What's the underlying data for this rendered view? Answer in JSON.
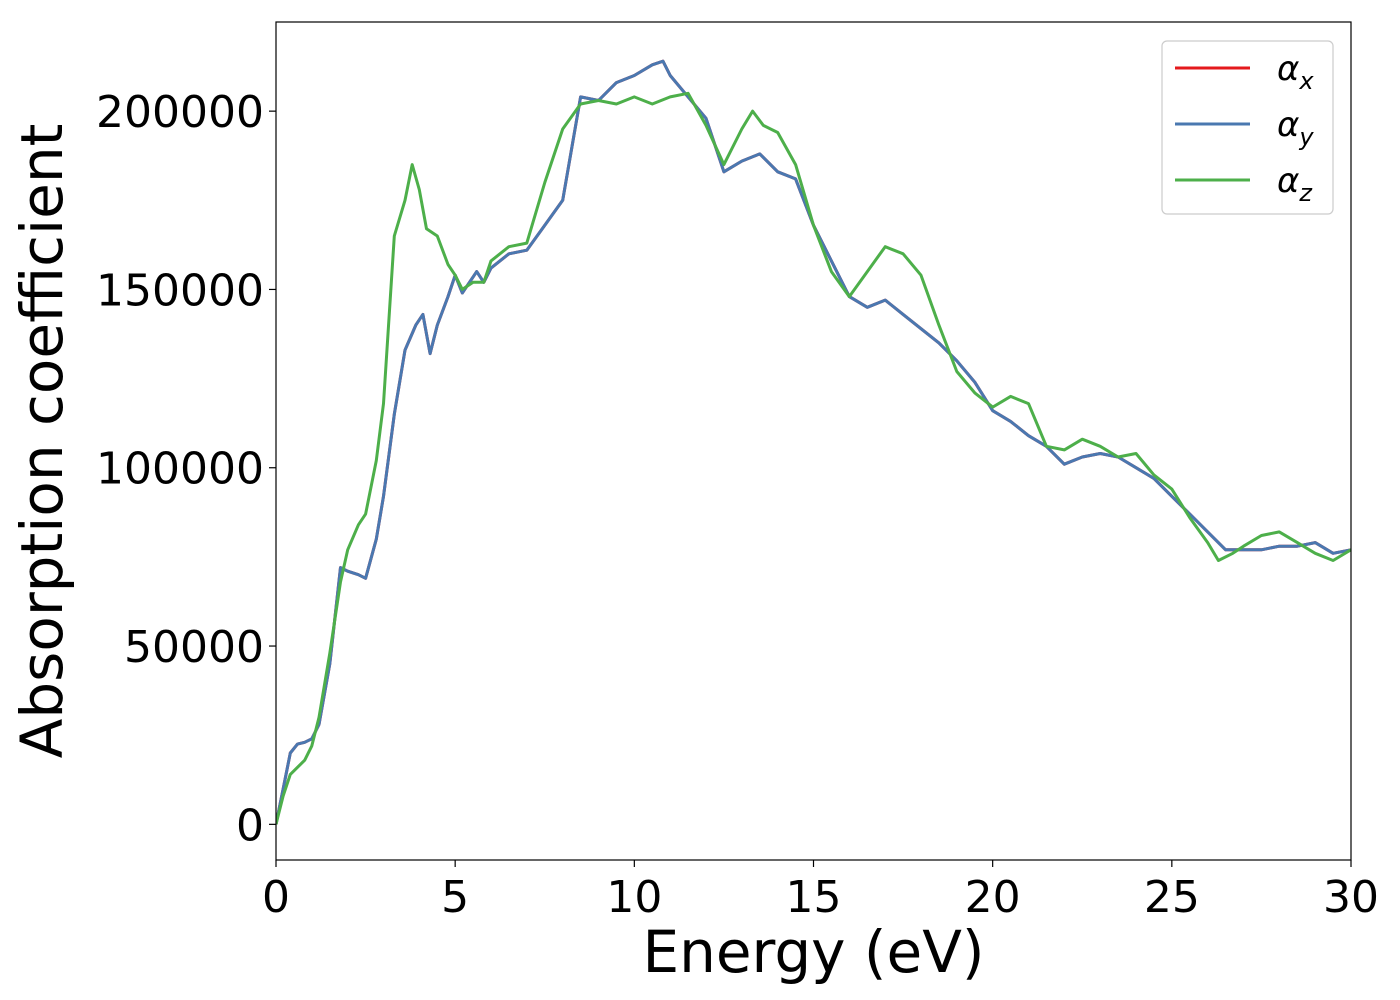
{
  "chart_data": {
    "type": "line",
    "xlabel": "Energy (eV)",
    "ylabel": "Absorption coefficient",
    "xlim": [
      0,
      30
    ],
    "ylim": [
      -10000,
      225000
    ],
    "xticks": [
      0,
      5,
      10,
      15,
      20,
      25,
      30
    ],
    "yticks": [
      0,
      50000,
      100000,
      150000,
      200000
    ],
    "grid": false,
    "legend_position": "top-right",
    "series": [
      {
        "name": "α",
        "subscript": "x",
        "color": "#e41a1c",
        "x": [
          0,
          0.2,
          0.4,
          0.6,
          0.8,
          1.0,
          1.2,
          1.5,
          1.8,
          2.0,
          2.3,
          2.5,
          2.8,
          3.0,
          3.3,
          3.6,
          3.9,
          4.1,
          4.3,
          4.5,
          4.8,
          5.0,
          5.2,
          5.4,
          5.6,
          5.8,
          6.0,
          6.5,
          7.0,
          7.5,
          8.0,
          8.5,
          9.0,
          9.5,
          10.0,
          10.5,
          10.8,
          11.0,
          11.5,
          12.0,
          12.5,
          13.0,
          13.5,
          14.0,
          14.5,
          15.0,
          15.5,
          16.0,
          16.5,
          17.0,
          17.5,
          18.0,
          18.5,
          19.0,
          19.5,
          20.0,
          20.5,
          21.0,
          21.5,
          22.0,
          22.5,
          23.0,
          23.5,
          24.0,
          24.5,
          25.0,
          25.5,
          26.0,
          26.5,
          27.0,
          27.5,
          28.0,
          28.5,
          29.0,
          29.5,
          30.0
        ],
        "y": [
          0,
          10000,
          20000,
          22500,
          23000,
          24000,
          28000,
          45000,
          72000,
          71000,
          70000,
          69000,
          80000,
          92000,
          115000,
          133000,
          140000,
          143000,
          132000,
          140000,
          148000,
          154000,
          149000,
          152000,
          155000,
          152000,
          156000,
          160000,
          161000,
          168000,
          175000,
          204000,
          203000,
          208000,
          210000,
          213000,
          214000,
          210000,
          204000,
          198000,
          183000,
          186000,
          188000,
          183000,
          181000,
          168000,
          158000,
          148000,
          145000,
          147000,
          143000,
          139000,
          135000,
          130000,
          124000,
          116000,
          113000,
          109000,
          106000,
          101000,
          103000,
          104000,
          103000,
          100000,
          97000,
          92000,
          87000,
          82000,
          77000,
          77000,
          77000,
          78000,
          78000,
          79000,
          76000,
          77000
        ]
      },
      {
        "name": "α",
        "subscript": "y",
        "color": "#4a78b0",
        "x": [
          0,
          0.2,
          0.4,
          0.6,
          0.8,
          1.0,
          1.2,
          1.5,
          1.8,
          2.0,
          2.3,
          2.5,
          2.8,
          3.0,
          3.3,
          3.6,
          3.9,
          4.1,
          4.3,
          4.5,
          4.8,
          5.0,
          5.2,
          5.4,
          5.6,
          5.8,
          6.0,
          6.5,
          7.0,
          7.5,
          8.0,
          8.5,
          9.0,
          9.5,
          10.0,
          10.5,
          10.8,
          11.0,
          11.5,
          12.0,
          12.5,
          13.0,
          13.5,
          14.0,
          14.5,
          15.0,
          15.5,
          16.0,
          16.5,
          17.0,
          17.5,
          18.0,
          18.5,
          19.0,
          19.5,
          20.0,
          20.5,
          21.0,
          21.5,
          22.0,
          22.5,
          23.0,
          23.5,
          24.0,
          24.5,
          25.0,
          25.5,
          26.0,
          26.5,
          27.0,
          27.5,
          28.0,
          28.5,
          29.0,
          29.5,
          30.0
        ],
        "y": [
          0,
          10000,
          20000,
          22500,
          23000,
          24000,
          28000,
          45000,
          72000,
          71000,
          70000,
          69000,
          80000,
          92000,
          115000,
          133000,
          140000,
          143000,
          132000,
          140000,
          148000,
          154000,
          149000,
          152000,
          155000,
          152000,
          156000,
          160000,
          161000,
          168000,
          175000,
          204000,
          203000,
          208000,
          210000,
          213000,
          214000,
          210000,
          204000,
          198000,
          183000,
          186000,
          188000,
          183000,
          181000,
          168000,
          158000,
          148000,
          145000,
          147000,
          143000,
          139000,
          135000,
          130000,
          124000,
          116000,
          113000,
          109000,
          106000,
          101000,
          103000,
          104000,
          103000,
          100000,
          97000,
          92000,
          87000,
          82000,
          77000,
          77000,
          77000,
          78000,
          78000,
          79000,
          76000,
          77000
        ]
      },
      {
        "name": "α",
        "subscript": "z",
        "color": "#4daf4a",
        "x": [
          0,
          0.2,
          0.4,
          0.6,
          0.8,
          1.0,
          1.2,
          1.5,
          1.8,
          2.0,
          2.3,
          2.5,
          2.8,
          3.0,
          3.3,
          3.6,
          3.8,
          4.0,
          4.2,
          4.5,
          4.8,
          5.0,
          5.2,
          5.5,
          5.8,
          6.0,
          6.5,
          7.0,
          7.5,
          8.0,
          8.5,
          9.0,
          9.5,
          10.0,
          10.5,
          11.0,
          11.5,
          12.0,
          12.5,
          13.0,
          13.3,
          13.6,
          14.0,
          14.5,
          15.0,
          15.5,
          16.0,
          16.5,
          17.0,
          17.5,
          18.0,
          18.5,
          19.0,
          19.5,
          20.0,
          20.5,
          21.0,
          21.5,
          22.0,
          22.5,
          23.0,
          23.5,
          24.0,
          24.5,
          25.0,
          25.5,
          26.0,
          26.3,
          26.7,
          27.0,
          27.5,
          28.0,
          28.5,
          29.0,
          29.5,
          30.0
        ],
        "y": [
          0,
          8000,
          14000,
          16000,
          18000,
          22000,
          30000,
          48000,
          68000,
          77000,
          84000,
          87000,
          102000,
          118000,
          165000,
          175000,
          185000,
          178000,
          167000,
          165000,
          157000,
          154000,
          150000,
          152000,
          152000,
          158000,
          162000,
          163000,
          180000,
          195000,
          202000,
          203000,
          202000,
          204000,
          202000,
          204000,
          205000,
          196000,
          185000,
          195000,
          200000,
          196000,
          194000,
          185000,
          168000,
          155000,
          148000,
          155000,
          162000,
          160000,
          154000,
          140000,
          127000,
          121000,
          117000,
          120000,
          118000,
          106000,
          105000,
          108000,
          106000,
          103000,
          104000,
          98000,
          94000,
          86000,
          79000,
          74000,
          76000,
          78000,
          81000,
          82000,
          79000,
          76000,
          74000,
          77000
        ]
      }
    ]
  }
}
